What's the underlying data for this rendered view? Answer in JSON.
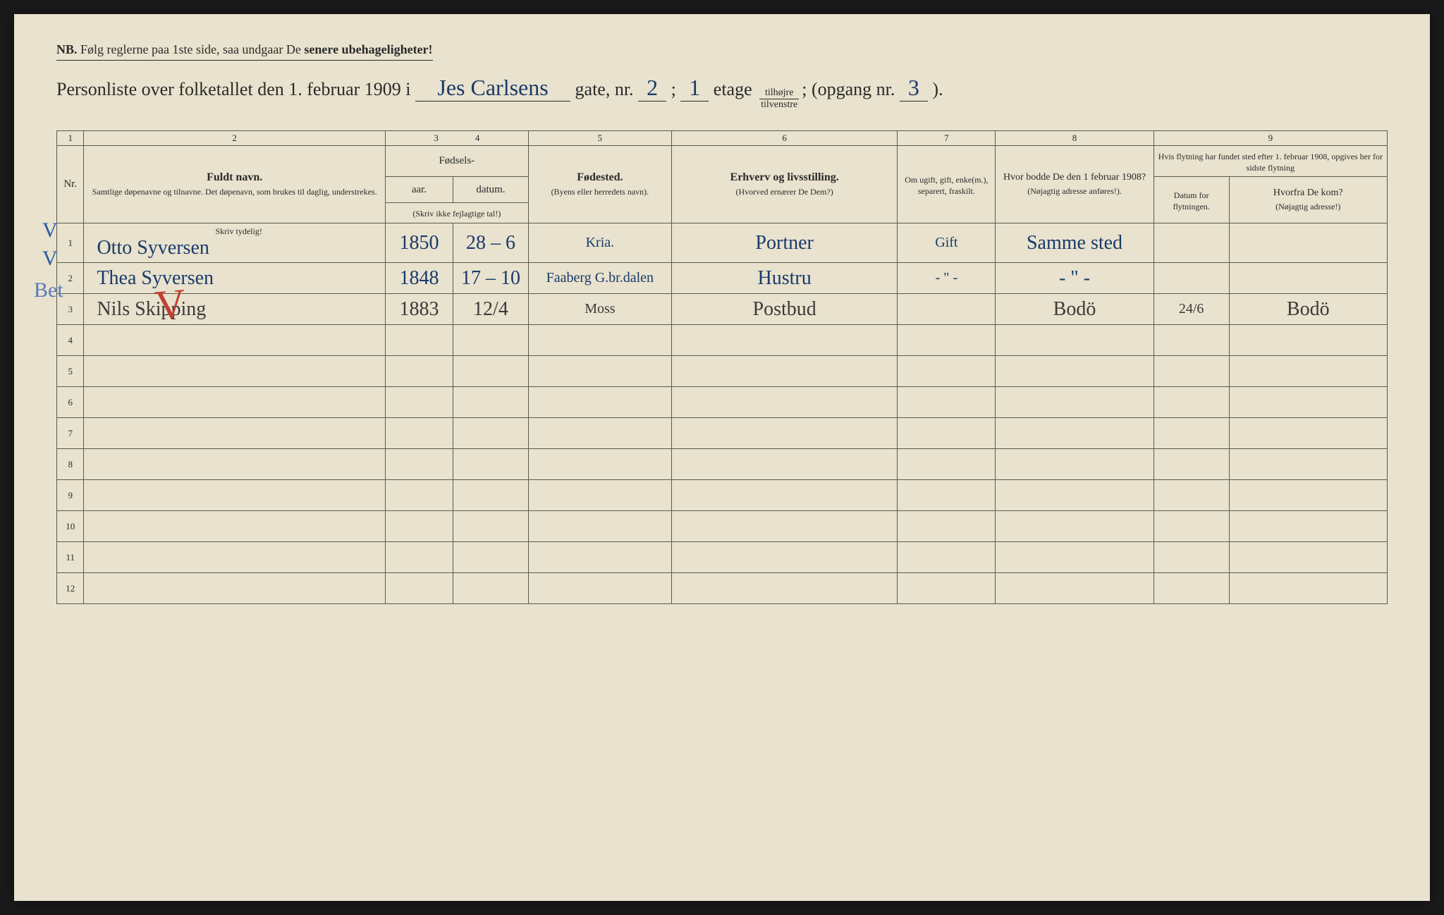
{
  "header": {
    "nb_prefix": "NB.",
    "nb_text": "Følg reglerne paa 1ste side, saa undgaar De ",
    "nb_bold": "senere ubehageligheter!",
    "title_pre": "Personliste over folketallet den 1. februar 1909 i ",
    "street": "Jes Carlsens",
    "title_gate": " gate, nr. ",
    "house_nr": "2",
    "semi": " ; ",
    "etage_nr": "1",
    "title_etage": " etage ",
    "frac_top": "tilhøjre",
    "frac_bot": "tilvenstre",
    "title_opgang": "; (opgang nr. ",
    "opgang_nr": "3",
    "title_end": " )."
  },
  "columns": {
    "nums": [
      "1",
      "2",
      "3",
      "4",
      "5",
      "6",
      "7",
      "8",
      "9"
    ],
    "nr": "Nr.",
    "name_main": "Fuldt navn.",
    "name_sub": "Samtlige døpenavne og tilnavne. Det døpenavn, som brukes til daglig, understrekes.",
    "fodsels": "Fødsels-",
    "aar": "aar.",
    "datum": "datum.",
    "aar_sub": "(Skriv ikke fejlagtige tal!)",
    "fodested": "Fødested.",
    "fodested_sub": "(Byens eller herredets navn).",
    "erhverv": "Erhverv og livsstilling.",
    "erhverv_sub": "(Hvorved ernærer De Dem?)",
    "ugift": "Om ugift, gift, enke(m.), separert, fraskilt.",
    "hvor1908": "Hvor bodde De den 1 februar 1908?",
    "hvor1908_sub": "(Nøjagtig adresse anføres!).",
    "flytning": "Hvis flytning har fundet sted efter 1. februar 1908, opgives her for sidste flytning",
    "flyt_datum": "Datum for flytningen.",
    "flyt_hvorfra": "Hvorfra De kom?",
    "flyt_hvorfra_sub": "(Nøjagtig adresse!)",
    "skriv_tydelig": "Skriv tydelig!"
  },
  "rows": [
    {
      "nr": "1",
      "mark": "V",
      "name": "Otto Syversen",
      "aar": "1850",
      "datum": "28 – 6",
      "fodested": "Kria.",
      "erhverv": "Portner",
      "ugift": "Gift",
      "addr1908": "Samme sted",
      "flyt_dat": "",
      "flyt_fra": ""
    },
    {
      "nr": "2",
      "mark": "V",
      "name": "Thea Syversen",
      "aar": "1848",
      "datum": "17 – 10",
      "fodested": "Faaberg G.br.dalen",
      "erhverv": "Hustru",
      "ugift": "- \" -",
      "addr1908": "- \" -",
      "flyt_dat": "",
      "flyt_fra": ""
    },
    {
      "nr": "3",
      "mark": "Bet",
      "name": "Nils Skipping",
      "aar": "1883",
      "datum": "12/4",
      "fodested": "Moss",
      "erhverv": "Postbud",
      "ugift": "",
      "addr1908": "Bodö",
      "flyt_dat": "24/6",
      "flyt_fra": "Bodö"
    },
    {
      "nr": "4"
    },
    {
      "nr": "5"
    },
    {
      "nr": "6"
    },
    {
      "nr": "7"
    },
    {
      "nr": "8"
    },
    {
      "nr": "9"
    },
    {
      "nr": "10"
    },
    {
      "nr": "11"
    },
    {
      "nr": "12"
    }
  ],
  "colwidths": {
    "c1": 36,
    "c2": 400,
    "c3": 90,
    "c4": 100,
    "c5": 190,
    "c6": 300,
    "c7": 130,
    "c8": 210,
    "c9a": 100,
    "c9b": 210
  }
}
